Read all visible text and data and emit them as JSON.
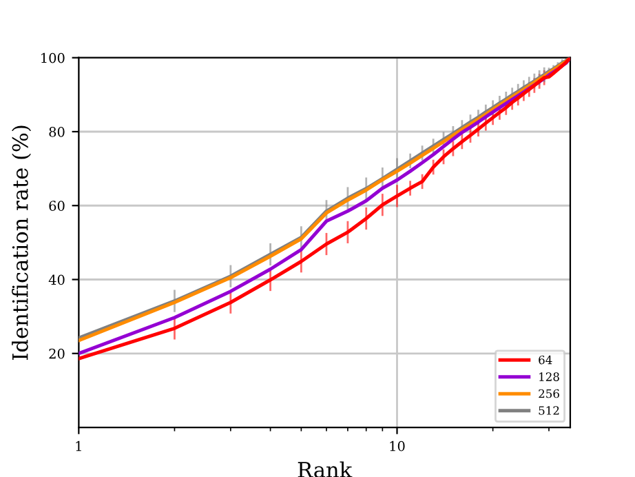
{
  "chart_data": {
    "type": "line",
    "xlabel": "Rank",
    "ylabel": "Identification rate (%)",
    "log": "x",
    "xlim": [
      1,
      35
    ],
    "xticks": [
      1,
      10
    ],
    "ylim": [
      0,
      100
    ],
    "yticks": [
      20,
      40,
      60,
      80,
      100
    ],
    "grid": true,
    "legend": "bottom right",
    "marker": "none",
    "line_style": "solid",
    "x": [
      1,
      2,
      3,
      4,
      5,
      6,
      7,
      8,
      9,
      10,
      11,
      12,
      13,
      14,
      15,
      16,
      17,
      18,
      19,
      20,
      21,
      22,
      23,
      24,
      25,
      26,
      27,
      28,
      29,
      30,
      31,
      32,
      33,
      34,
      35
    ],
    "series": [
      {
        "name": "64",
        "color": "#ff0000",
        "values": [
          18.6,
          26.8,
          33.8,
          39.9,
          44.9,
          49.6,
          52.8,
          56.5,
          60.2,
          62.6,
          64.7,
          66.5,
          70.4,
          73.2,
          75.4,
          77.3,
          79,
          80.7,
          82.3,
          83.8,
          85.2,
          86.5,
          87.9,
          89.1,
          90.3,
          91.4,
          92.5,
          93.6,
          94.6,
          94.8,
          95.8,
          96.8,
          97.8,
          98.8,
          100
        ],
        "errors": [
          null,
          3,
          3,
          3,
          3,
          3,
          3,
          3,
          3,
          3,
          2,
          2,
          2,
          2,
          2,
          2,
          2,
          2,
          2,
          2,
          2,
          2,
          2,
          2,
          2,
          2,
          2,
          2,
          2,
          null,
          null,
          null,
          null,
          null,
          null
        ]
      },
      {
        "name": "128",
        "color": "#9400d3",
        "values": [
          20,
          29.7,
          36.8,
          42.8,
          48.1,
          55.8,
          58.5,
          61.3,
          64.7,
          66.9,
          69.3,
          71.6,
          73.8,
          76,
          78,
          79.8,
          81.2,
          82.6,
          84,
          85.3,
          86.5,
          87.6,
          88.7,
          89.7,
          90.7,
          91.7,
          92.6,
          93.5,
          94.4,
          95.3,
          96.1,
          96.9,
          97.8,
          98.6,
          100
        ]
      },
      {
        "name": "256",
        "color": "#ff8c00",
        "values": [
          23.5,
          33.8,
          40.5,
          46.3,
          51,
          58,
          61.5,
          64.2,
          67,
          69.3,
          71.5,
          73.6,
          75.5,
          77.3,
          79,
          80.6,
          82,
          83.4,
          84.7,
          86,
          87.2,
          88.3,
          89.4,
          90.4,
          91.4,
          92.4,
          93.3,
          94.2,
          95,
          95.9,
          96.7,
          97.5,
          98.3,
          99,
          100
        ]
      },
      {
        "name": "512",
        "color": "#808080",
        "values": [
          24.2,
          34.2,
          40.9,
          46.8,
          51.4,
          58.5,
          62,
          64.6,
          67.3,
          69.8,
          72.1,
          74.2,
          76.1,
          77.9,
          79.5,
          81.1,
          82.6,
          83.9,
          85.3,
          86.5,
          87.7,
          88.8,
          89.9,
          90.9,
          91.9,
          92.8,
          93.7,
          94.6,
          95.4,
          96.3,
          97,
          97.8,
          98.6,
          99.2,
          100
        ],
        "errors": [
          null,
          3,
          3,
          3,
          3,
          3,
          3,
          3,
          3,
          3,
          2,
          2,
          2,
          2,
          2,
          2,
          2,
          2,
          2,
          2,
          2,
          2,
          2,
          2,
          2,
          2,
          2,
          2,
          2,
          1,
          1,
          1,
          1,
          1,
          null
        ]
      }
    ]
  }
}
